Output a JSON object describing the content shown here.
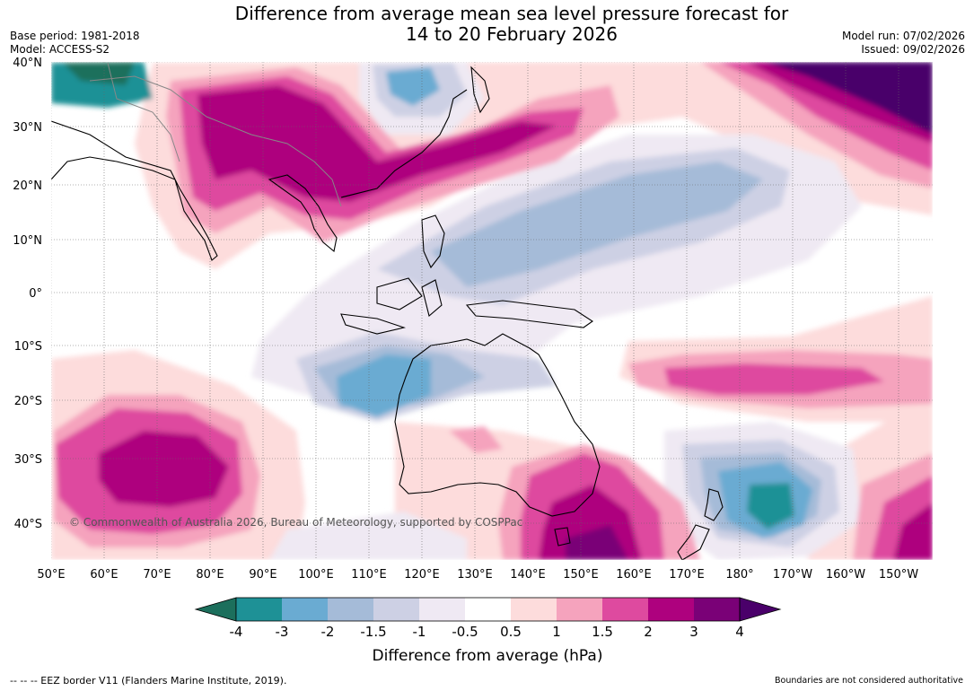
{
  "header": {
    "title_line1": "Difference from average mean sea level pressure forecast for",
    "title_line2": "14 to 20 February 2026",
    "base_period": "Base period: 1981-2018",
    "model": "Model: ACCESS-S2",
    "model_run": "Model run: 07/02/2026",
    "issued": "Issued: 09/02/2026"
  },
  "map": {
    "lat_labels": [
      "40°N",
      "30°N",
      "20°N",
      "10°N",
      "0°",
      "10°S",
      "20°S",
      "30°S",
      "40°S"
    ],
    "lon_labels": [
      "50°E",
      "60°E",
      "70°E",
      "80°E",
      "90°E",
      "100°E",
      "110°E",
      "120°E",
      "130°E",
      "140°E",
      "150°E",
      "160°E",
      "170°E",
      "180°",
      "170°W",
      "160°W",
      "150°W"
    ],
    "copyright": "© Commonwealth of Australia 2026, Bureau of Meteorology, supported by COSPPac"
  },
  "colorbar": {
    "title": "Difference from average (hPa)",
    "tick_labels": [
      "-4",
      "-3",
      "-2",
      "-1.5",
      "-1",
      "-0.5",
      "0.5",
      "1",
      "1.5",
      "2",
      "3",
      "4"
    ],
    "colors": [
      "#1c6f5c",
      "#1e9196",
      "#6aabd2",
      "#a5bbd8",
      "#cdd0e4",
      "#efe9f3",
      "#ffffff",
      "#fddcdc",
      "#f5a3bd",
      "#de4a9f",
      "#ae017e",
      "#7a0177",
      "#4a006a"
    ]
  },
  "footer": {
    "eez_note": "--  --  -- EEZ border V11 (Flanders Marine Institute, 2019).",
    "boundaries_note": "Boundaries are not considered authoritative"
  }
}
